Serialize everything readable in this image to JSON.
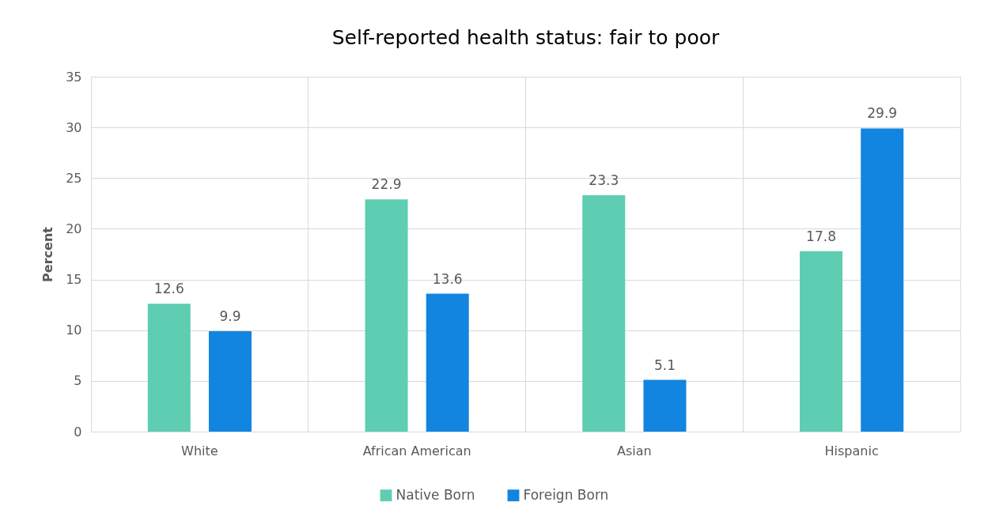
{
  "chart_data": {
    "type": "bar",
    "title": "Self-reported health status: fair to poor",
    "ylabel": "Percent",
    "categories": [
      "White",
      "African American",
      "Asian",
      "Hispanic"
    ],
    "series": [
      {
        "name": "Native Born",
        "color": "#5ecdb1",
        "values": [
          12.6,
          22.9,
          23.3,
          17.8
        ]
      },
      {
        "name": "Foreign Born",
        "color": "#1185e0",
        "values": [
          9.9,
          13.6,
          5.1,
          29.9
        ]
      }
    ],
    "ylim": [
      0,
      35
    ],
    "yticks": [
      0,
      5,
      10,
      15,
      20,
      25,
      30,
      35
    ],
    "grid": true,
    "legend": "bottom",
    "data_labels": true
  }
}
